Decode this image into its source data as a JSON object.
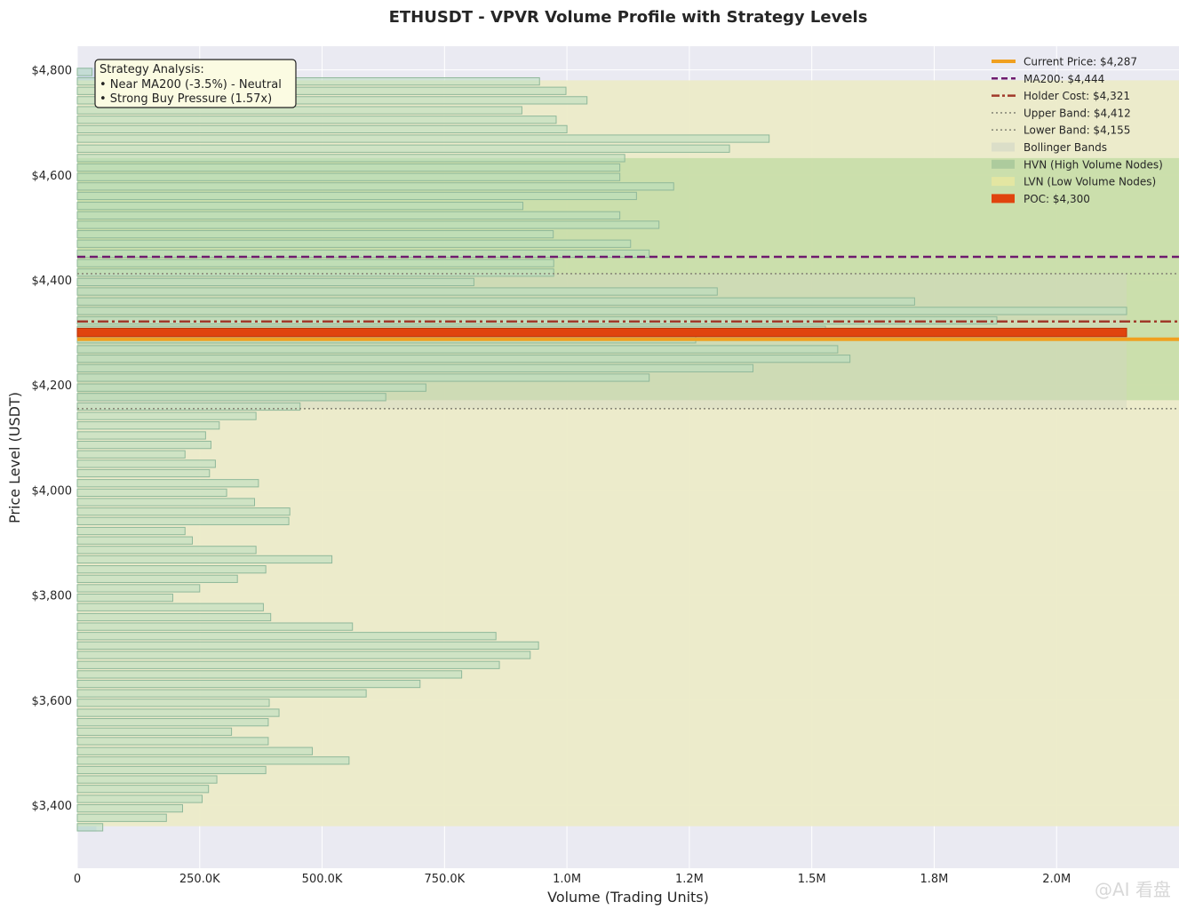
{
  "chart_data": {
    "type": "bar",
    "orientation": "horizontal",
    "title": "ETHUSDT - VPVR Volume Profile with Strategy Levels",
    "xlabel": "Volume (Trading Units)",
    "ylabel": "Price Level (USDT)",
    "xlim": [
      0,
      2250000
    ],
    "ylim": [
      3280,
      4845
    ],
    "x_ticks": [
      {
        "value": 0,
        "label": "0"
      },
      {
        "value": 250000,
        "label": "250.0K"
      },
      {
        "value": 500000,
        "label": "500.0K"
      },
      {
        "value": 750000,
        "label": "750.0K"
      },
      {
        "value": 1000000,
        "label": "1.0M"
      },
      {
        "value": 1250000,
        "label": "1.2M"
      },
      {
        "value": 1500000,
        "label": "1.5M"
      },
      {
        "value": 1750000,
        "label": "1.8M"
      },
      {
        "value": 2000000,
        "label": "2.0M"
      }
    ],
    "y_ticks": [
      {
        "value": 3400,
        "label": "$3,400"
      },
      {
        "value": 3600,
        "label": "$3,600"
      },
      {
        "value": 3800,
        "label": "$3,800"
      },
      {
        "value": 4000,
        "label": "$4,000"
      },
      {
        "value": 4200,
        "label": "$4,200"
      },
      {
        "value": 4400,
        "label": "$4,400"
      },
      {
        "value": 4600,
        "label": "$4,600"
      },
      {
        "value": 4800,
        "label": "$4,800"
      }
    ],
    "grid": true,
    "legend_position": "top-right",
    "bar_height_price": 16,
    "price_levels": [
      3358,
      3376,
      3394,
      3412,
      3431,
      3449,
      3467,
      3485,
      3503,
      3522,
      3540,
      3558,
      3576,
      3595,
      3613,
      3631,
      3649,
      3667,
      3686,
      3704,
      3722,
      3740,
      3758,
      3777,
      3795,
      3813,
      3831,
      3849,
      3868,
      3886,
      3904,
      3922,
      3941,
      3959,
      3977,
      3995,
      4013,
      4032,
      4050,
      4068,
      4086,
      4104,
      4123,
      4141,
      4159,
      4177,
      4195,
      4214,
      4232,
      4250,
      4268,
      4287,
      4305,
      4323,
      4341,
      4359,
      4378,
      4396,
      4414,
      4432,
      4450,
      4469,
      4487,
      4505,
      4523,
      4541,
      4560,
      4578,
      4596,
      4614,
      4632,
      4650,
      4669,
      4687,
      4705,
      4723,
      4742,
      4760,
      4778,
      4796
    ],
    "volumes": [
      52000,
      182000,
      215000,
      255000,
      268000,
      285000,
      385000,
      555000,
      480000,
      390000,
      315000,
      390000,
      412000,
      392000,
      590000,
      700000,
      785000,
      862000,
      925000,
      942000,
      855000,
      562000,
      395000,
      380000,
      195000,
      250000,
      327000,
      385000,
      520000,
      365000,
      235000,
      220000,
      432000,
      434000,
      362000,
      305000,
      370000,
      270000,
      282000,
      220000,
      273000,
      262000,
      290000,
      365000,
      455000,
      630000,
      712000,
      1168000,
      1380000,
      1578000,
      1553000,
      1263000,
      1528000,
      1878000,
      2143000,
      1710000,
      1307000,
      810000,
      973000,
      973000,
      1168000,
      1130000,
      972000,
      1188000,
      1108000,
      910000,
      1142000,
      1218000,
      1108000,
      1108000,
      1118000,
      1332000,
      1413000,
      1000000,
      978000,
      908000,
      1041000,
      998000,
      944000,
      30000
    ],
    "hvn_low": 4171,
    "hvn_high": 4632,
    "lvn_low": 3360,
    "lvn_high": 4780,
    "bollinger_low": 4155,
    "bollinger_high": 4412,
    "lines": {
      "current_price": 4287,
      "ma200": 4444,
      "holder_cost": 4321,
      "upper_band": 4412,
      "lower_band": 4155,
      "poc": 4300,
      "poc_volume": 2143000
    },
    "legend": [
      {
        "key": "current",
        "label": "Current Price: $4,287",
        "color": "#f0a020",
        "style": "solid-thick"
      },
      {
        "key": "ma200",
        "label": "MA200: $4,444",
        "color": "#6e1a6e",
        "style": "dashed"
      },
      {
        "key": "holder",
        "label": "Holder Cost: $4,321",
        "color": "#a0392a",
        "style": "dashdot"
      },
      {
        "key": "upper",
        "label": "Upper Band: $4,412",
        "color": "#8a8a7a",
        "style": "dotted"
      },
      {
        "key": "lower",
        "label": "Lower Band: $4,155",
        "color": "#8a8a7a",
        "style": "dotted"
      },
      {
        "key": "boll",
        "label": "Bollinger Bands",
        "color": "#d8dcc8",
        "style": "patch"
      },
      {
        "key": "hvn",
        "label": "HVN (High Volume Nodes)",
        "color": "#a8c89a",
        "style": "patch-hatch"
      },
      {
        "key": "lvn",
        "label": "LVN (Low Volume Nodes)",
        "color": "#e8e8a0",
        "style": "patch-dots"
      },
      {
        "key": "poc",
        "label": "POC: $4,300",
        "color": "#e0440e",
        "style": "patch"
      }
    ],
    "annotation": {
      "lines": [
        "Strategy Analysis:",
        "• Near MA200 (-3.5%) - Neutral",
        "• Strong Buy Pressure (1.57x)"
      ]
    },
    "colors": {
      "plot_bg": "#eaeaf2",
      "bar_fill": "#b8dcc0",
      "bar_edge": "#8fb89a",
      "lvn_fill": "#ecebc8",
      "hvn_fill": "#c8dea8",
      "boll_fill": "#d2d8c0"
    }
  },
  "watermark": "@AI 看盘"
}
